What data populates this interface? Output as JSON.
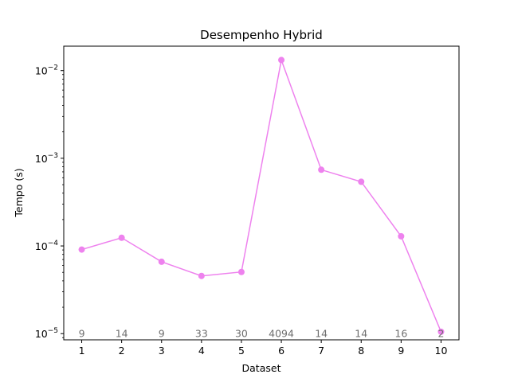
{
  "chart_data": {
    "type": "line",
    "title": "Desempenho Hybrid",
    "xlabel": "Dataset",
    "ylabel": "Tempo (s)",
    "yscale": "log",
    "ylim": [
      8.5e-06,
      0.019
    ],
    "xlim": [
      0.55,
      10.45
    ],
    "x_ticks": [
      1,
      2,
      3,
      4,
      5,
      6,
      7,
      8,
      9,
      10
    ],
    "y_ticks": [
      {
        "value": 1e-05,
        "base": "10",
        "exp": "−5"
      },
      {
        "value": 0.0001,
        "base": "10",
        "exp": "−4"
      },
      {
        "value": 0.001,
        "base": "10",
        "exp": "−3"
      },
      {
        "value": 0.01,
        "base": "10",
        "exp": "−2"
      }
    ],
    "grid": false,
    "series": [
      {
        "color": "#ee82ee",
        "marker": "circle",
        "x": [
          1,
          2,
          3,
          4,
          5,
          6,
          7,
          8,
          9,
          10
        ],
        "y": [
          9.1e-05,
          0.000124,
          6.6e-05,
          4.55e-05,
          5.05e-05,
          0.0132,
          0.00074,
          0.00054,
          0.000129,
          1.05e-05
        ]
      }
    ],
    "annotations": {
      "y_position": 1e-05,
      "color": "#6e6e6e",
      "labels": [
        "9",
        "14",
        "9",
        "33",
        "30",
        "4094",
        "14",
        "14",
        "16",
        "2"
      ]
    }
  }
}
